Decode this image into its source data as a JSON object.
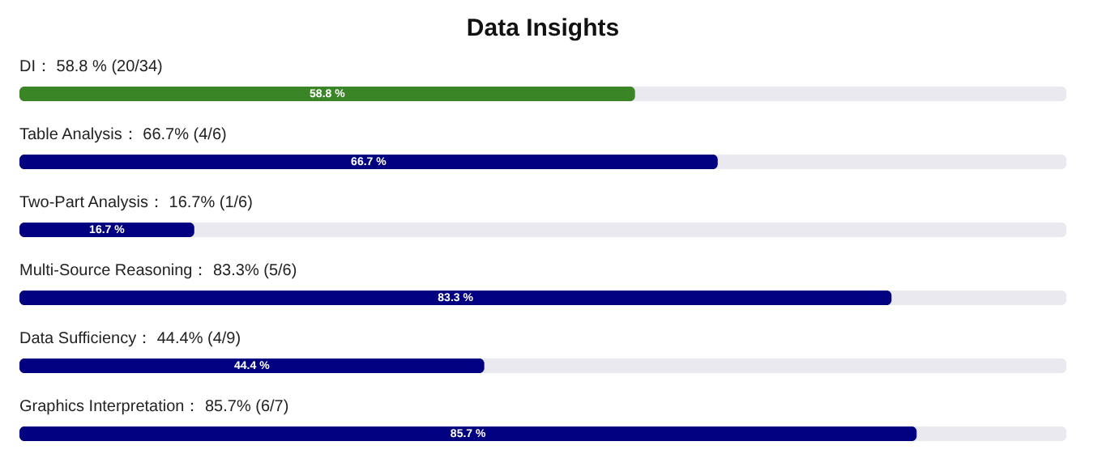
{
  "chart_data": {
    "type": "bar",
    "title": "Data Insights",
    "orientation": "horizontal",
    "categories": [
      "DI： 58.8 %   (20/34)",
      "Table Analysis： 66.7% (4/6)",
      "Two-Part Analysis： 16.7% (1/6)",
      "Multi-Source Reasoning： 83.3% (5/6)",
      "Data Sufficiency： 44.4% (4/9)",
      "Graphics Interpretation： 85.7% (6/7)"
    ],
    "values": [
      58.8,
      66.7,
      16.7,
      83.3,
      44.4,
      85.7
    ],
    "value_labels": [
      "58.8 %",
      "66.7 %",
      "16.7 %",
      "83.3 %",
      "44.4 %",
      "85.7 %"
    ],
    "colors": [
      "#3a8526",
      "#000080",
      "#000080",
      "#000080",
      "#000080",
      "#000080"
    ],
    "xlim": [
      0,
      100
    ]
  }
}
